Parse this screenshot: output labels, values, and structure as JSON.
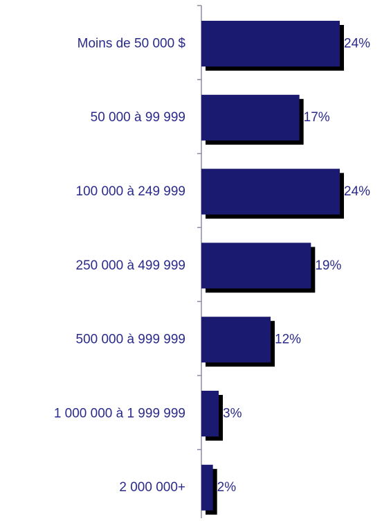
{
  "chart_data": {
    "type": "bar",
    "orientation": "horizontal",
    "categories": [
      "Moins de 50 000 $",
      "50 000 à 99 999",
      "100 000 à 249 999",
      "250 000 à 499 999",
      "500 000 à 999 999",
      "1 000 000 à 1 999 999",
      "2 000 000+"
    ],
    "values": [
      24,
      17,
      24,
      19,
      12,
      3,
      2
    ],
    "value_labels": [
      "24%",
      "17%",
      "24%",
      "19%",
      "12%",
      "3%",
      "2%"
    ],
    "title": "",
    "xlabel": "",
    "ylabel": "",
    "xlim": [
      0,
      24
    ],
    "grid": false,
    "legend": "none",
    "colors": {
      "bar": "#1a1a70",
      "shadow": "#000000",
      "text": "#2a2a8a",
      "axis": "#8a8aa8"
    }
  }
}
